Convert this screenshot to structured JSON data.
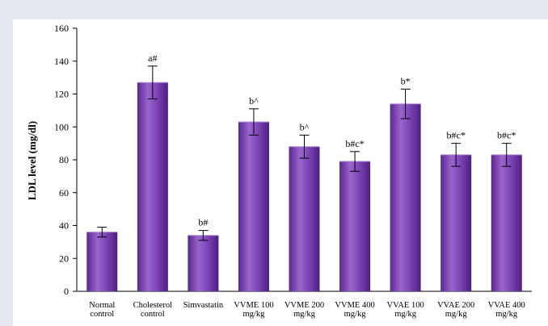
{
  "chart_data": {
    "type": "bar",
    "title": "",
    "xlabel": "",
    "ylabel": "LDL level (mg/dl)",
    "ylim": [
      0,
      160
    ],
    "yticks": [
      0,
      20,
      40,
      60,
      80,
      100,
      120,
      140,
      160
    ],
    "grid": false,
    "categories": [
      [
        "Normal",
        "control"
      ],
      [
        "Cholesterol",
        "control"
      ],
      [
        "Simvastatin"
      ],
      [
        "VVME 100",
        "mg/kg"
      ],
      [
        "VVME 200",
        "mg/kg"
      ],
      [
        "VVME 400",
        "mg/kg"
      ],
      [
        "VVAE 100",
        "mg/kg"
      ],
      [
        "VVAE 200",
        "mg/kg"
      ],
      [
        "VVAE 400",
        "mg/kg"
      ]
    ],
    "values": [
      36,
      127,
      34,
      103,
      88,
      79,
      114,
      83,
      83
    ],
    "errors": [
      3,
      10,
      3,
      8,
      7,
      6,
      9,
      7,
      7
    ],
    "annotations": [
      "",
      "a#",
      "b#",
      "b^",
      "b^",
      "b#c*",
      "b*",
      "b#c*",
      "b#c*"
    ],
    "bar_color": "#7b3fb0"
  }
}
